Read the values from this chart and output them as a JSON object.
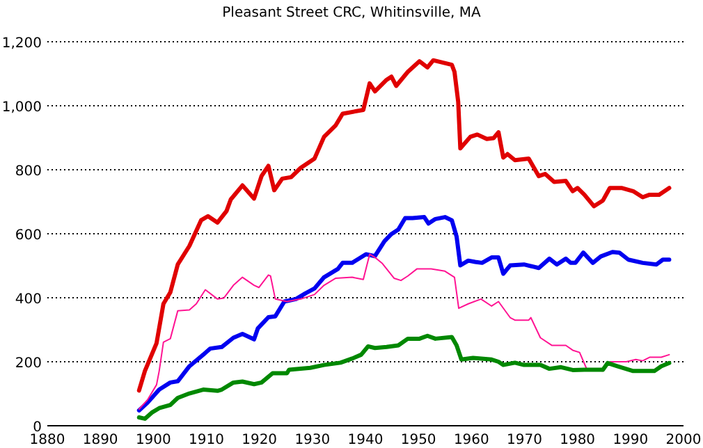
{
  "chart_data": {
    "type": "line",
    "title": "Pleasant Street CRC, Whitinsville, MA",
    "xlim": [
      1880,
      2000
    ],
    "xticks": [
      1880,
      1890,
      1900,
      1910,
      1920,
      1930,
      1940,
      1950,
      1960,
      1970,
      1980,
      1990,
      2000
    ],
    "ylim": [
      0,
      1200
    ],
    "yticks": [
      0,
      200,
      400,
      600,
      800,
      {
        "value": 1000,
        "label": "1,000"
      },
      {
        "value": 1200,
        "label": "1,200"
      }
    ],
    "grid": "y",
    "marker": "none",
    "line_style": "solid",
    "series": [
      {
        "color": "#e00000",
        "x": [
          1897.3,
          1898.4,
          1900.6,
          1901.9,
          1903.2,
          1904.6,
          1906.8,
          1909,
          1910.3,
          1912.1,
          1913.8,
          1914.6,
          1916.8,
          1919,
          1920.4,
          1921.7,
          1922.8,
          1924.3,
          1926,
          1927.8,
          1930.4,
          1932.2,
          1934.4,
          1935.7,
          1939.6,
          1940.8,
          1941.8,
          1944,
          1944.9,
          1945.8,
          1948,
          1950.2,
          1951.7,
          1952.8,
          1956.3,
          1956.8,
          1957.5,
          1957.9,
          1959.8,
          1961.1,
          1962.9,
          1964.2,
          1965.1,
          1966,
          1966.8,
          1968.2,
          1970.8,
          1972.7,
          1973.9,
          1975.6,
          1977.8,
          1979.1,
          1980,
          1981.3,
          1983.1,
          1984.8,
          1986.1,
          1988.3,
          1990.5,
          1992.3,
          1993.6,
          1995.4,
          1997.3
        ],
        "values": [
          110,
          171,
          258,
          381,
          417,
          504,
          562,
          642,
          655,
          635,
          671,
          707,
          751,
          710,
          780,
          812,
          736,
          772,
          777,
          806,
          835,
          903,
          939,
          975,
          987,
          1070,
          1045,
          1081,
          1091,
          1062,
          1106,
          1139,
          1120,
          1142,
          1128,
          1106,
          1012,
          867,
          903,
          910,
          896,
          899,
          917,
          838,
          849,
          830,
          835,
          780,
          787,
          762,
          765,
          733,
          743,
          722,
          686,
          704,
          743,
          743,
          733,
          714,
          722,
          722,
          743
        ]
      },
      {
        "color": "#0000f0",
        "x": [
          1897.3,
          1898.9,
          1901.1,
          1903.2,
          1904.6,
          1906.8,
          1909.4,
          1910.7,
          1912.9,
          1915.1,
          1916.8,
          1919,
          1919.7,
          1921.7,
          1923,
          1924.7,
          1926.9,
          1928.7,
          1930.4,
          1932.2,
          1934.8,
          1935.7,
          1937.5,
          1940.1,
          1941.8,
          1943.6,
          1944.9,
          1946.2,
          1947.5,
          1948.9,
          1951.1,
          1951.9,
          1953.2,
          1955,
          1956.3,
          1957.2,
          1957.9,
          1959.4,
          1960.7,
          1962,
          1963.8,
          1965.1,
          1966,
          1967.3,
          1969.9,
          1971.7,
          1972.7,
          1974.7,
          1976.1,
          1977.8,
          1978.7,
          1979.6,
          1981.1,
          1982.9,
          1984.4,
          1986.6,
          1987.9,
          1989.6,
          1992.3,
          1994.9,
          1996.1,
          1997.3
        ],
        "values": [
          48,
          72,
          113,
          135,
          139,
          186,
          222,
          241,
          246,
          275,
          287,
          270,
          304,
          339,
          342,
          388,
          396,
          414,
          429,
          464,
          490,
          509,
          509,
          536,
          530,
          577,
          599,
          613,
          649,
          649,
          652,
          632,
          646,
          652,
          642,
          591,
          501,
          516,
          512,
          509,
          526,
          526,
          475,
          501,
          504,
          497,
          493,
          522,
          504,
          522,
          509,
          509,
          541,
          509,
          529,
          543,
          541,
          519,
          509,
          504,
          519,
          519
        ]
      },
      {
        "color": "#ff1493",
        "x": [
          1897.3,
          1898.9,
          1900.6,
          1901.1,
          1901.9,
          1903.2,
          1904.6,
          1906.8,
          1908.1,
          1909.8,
          1912.1,
          1913.3,
          1915.1,
          1916.8,
          1919,
          1919.9,
          1921.7,
          1922.1,
          1923,
          1925.2,
          1927.8,
          1930.4,
          1932.2,
          1934.4,
          1937.5,
          1939.6,
          1940.8,
          1941.8,
          1943.2,
          1945.4,
          1946.7,
          1948,
          1949.7,
          1952.4,
          1955,
          1956.8,
          1957.6,
          1959.4,
          1961.8,
          1963.8,
          1965.1,
          1967.3,
          1968.2,
          1970.8,
          1971.2,
          1973,
          1975.2,
          1977.8,
          1979.1,
          1980.4,
          1981.8,
          1984.8,
          1986.1,
          1989.2,
          1991,
          1992.3,
          1993.6,
          1995.8,
          1997.3
        ],
        "values": [
          52,
          81,
          128,
          171,
          261,
          272,
          359,
          362,
          381,
          425,
          396,
          399,
          439,
          464,
          439,
          432,
          471,
          468,
          396,
          388,
          396,
          410,
          439,
          461,
          464,
          457,
          536,
          526,
          507,
          461,
          454,
          468,
          490,
          490,
          483,
          464,
          367,
          381,
          396,
          374,
          388,
          338,
          330,
          330,
          338,
          275,
          251,
          251,
          236,
          229,
          175,
          171,
          200,
          200,
          207,
          203,
          214,
          214,
          222
        ]
      },
      {
        "color": "#008800",
        "x": [
          1897.3,
          1898.4,
          1899.7,
          1901.1,
          1903.2,
          1904.6,
          1906.8,
          1909.4,
          1912.1,
          1912.9,
          1915.1,
          1916.8,
          1919,
          1920.4,
          1922.5,
          1925.2,
          1925.6,
          1929.6,
          1932.2,
          1935.3,
          1937.5,
          1939.2,
          1940.5,
          1941.8,
          1944,
          1946.2,
          1948,
          1950.2,
          1951.7,
          1953.2,
          1956.3,
          1957.2,
          1958.1,
          1960.3,
          1963.8,
          1965.1,
          1966,
          1968.2,
          1969.9,
          1973,
          1974.7,
          1976.9,
          1979.1,
          1981.3,
          1984.8,
          1985.7,
          1987.5,
          1990.5,
          1994.5,
          1995.8,
          1997.3
        ],
        "values": [
          26,
          22,
          41,
          55,
          65,
          87,
          101,
          113,
          109,
          113,
          135,
          138,
          130,
          135,
          164,
          164,
          175,
          181,
          190,
          197,
          210,
          222,
          248,
          243,
          246,
          251,
          272,
          272,
          281,
          272,
          277,
          251,
          207,
          212,
          207,
          200,
          190,
          197,
          190,
          190,
          178,
          183,
          174,
          175,
          175,
          196,
          186,
          171,
          171,
          186,
          196
        ]
      }
    ]
  }
}
